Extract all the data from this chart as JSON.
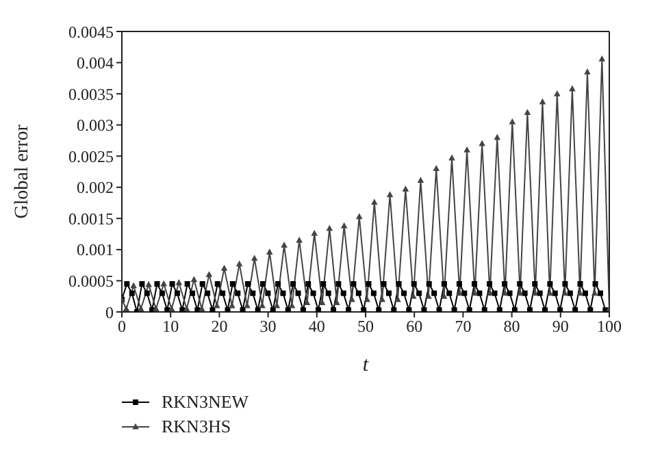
{
  "chart_data": {
    "type": "line",
    "xlabel": "t",
    "ylabel": "Global error",
    "xlim": [
      0,
      100
    ],
    "xticks": [
      0,
      10,
      20,
      30,
      40,
      50,
      60,
      70,
      80,
      90,
      100
    ],
    "ylim": [
      0,
      0.0045
    ],
    "yticks": [
      0,
      0.0005,
      0.001,
      0.0015,
      0.002,
      0.0025,
      0.003,
      0.0035,
      0.004,
      0.0045
    ],
    "legend": "bottom left",
    "series": [
      {
        "name": "RKN3NEW",
        "color": "#000000",
        "marker": "square",
        "x": [
          0,
          1.03,
          2.07,
          3.1,
          4.13,
          5.17,
          6.2,
          7.23,
          8.27,
          9.3,
          10.33,
          11.37,
          12.4,
          13.43,
          14.47,
          15.5,
          16.53,
          17.57,
          18.6,
          19.63,
          20.67,
          21.7,
          22.73,
          23.77,
          24.8,
          25.83,
          26.87,
          27.9,
          28.93,
          29.97,
          31,
          32.03,
          33.07,
          34.1,
          35.13,
          36.17,
          37.2,
          38.23,
          39.27,
          40.3,
          41.33,
          42.37,
          43.4,
          44.43,
          45.47,
          46.5,
          47.53,
          48.57,
          49.6,
          50.63,
          51.67,
          52.7,
          53.73,
          54.77,
          55.8,
          56.83,
          57.87,
          58.9,
          59.93,
          60.97,
          62,
          63.03,
          64.07,
          65.1,
          66.13,
          67.17,
          68.2,
          69.23,
          70.27,
          71.3,
          72.33,
          73.37,
          74.4,
          75.43,
          76.47,
          77.5,
          78.53,
          79.57,
          80.6,
          81.63,
          82.67,
          83.7,
          84.73,
          85.77,
          86.8,
          87.83,
          88.87,
          89.9,
          90.93,
          91.97,
          93,
          94.03,
          95.07,
          96.1,
          97.13,
          98.17,
          99.2
        ],
        "values": [
          0.0002,
          0.00045,
          0.0003,
          0,
          0.00045,
          0.0003,
          3e-05,
          0.00045,
          0.0003,
          3e-05,
          0.00045,
          0.0003,
          3e-05,
          0.00045,
          0.0003,
          3e-05,
          0.00045,
          0.0003,
          3e-05,
          0.00045,
          0.0003,
          3e-05,
          0.00045,
          0.0003,
          3e-05,
          0.00045,
          0.0003,
          3e-05,
          0.00045,
          0.0003,
          3e-05,
          0.00045,
          0.0003,
          3e-05,
          0.00045,
          0.0003,
          3e-05,
          0.00045,
          0.0003,
          3e-05,
          0.00045,
          0.0003,
          3e-05,
          0.00045,
          0.0003,
          3e-05,
          0.00045,
          0.0003,
          3e-05,
          0.00045,
          0.0003,
          3e-05,
          0.00045,
          0.0003,
          3e-05,
          0.00045,
          0.0003,
          3e-05,
          0.00045,
          0.0003,
          3e-05,
          0.00045,
          0.0003,
          3e-05,
          0.00045,
          0.0003,
          3e-05,
          0.00045,
          0.0003,
          3e-05,
          0.00045,
          0.0003,
          3e-05,
          0.00045,
          0.0003,
          3e-05,
          0.00045,
          0.0003,
          3e-05,
          0.00045,
          0.0003,
          3e-05,
          0.00045,
          0.0003,
          3e-05,
          0.00045,
          0.0003,
          3e-05,
          0.00045,
          0.0003,
          3e-05,
          0.00045,
          0.0003,
          3e-05,
          0.00045,
          0.0003,
          3e-05
        ]
      },
      {
        "name": "RKN3HS",
        "color": "#444444",
        "marker": "triangle",
        "x": [
          0,
          0.9,
          2.4,
          3.9,
          5.5,
          7,
          8.6,
          10.2,
          11.7,
          13.3,
          14.8,
          16.4,
          17.9,
          19.5,
          21,
          22.6,
          24.1,
          25.7,
          27.2,
          28.8,
          30.3,
          31.8,
          33.3,
          34.9,
          36.4,
          38,
          39.5,
          41.1,
          42.6,
          44.1,
          45.6,
          47.2,
          48.7,
          50.3,
          51.8,
          53.4,
          55,
          56.6,
          58.2,
          59.8,
          61.3,
          62.9,
          64.5,
          66.1,
          67.7,
          69.3,
          70.8,
          72.4,
          73.9,
          75.5,
          77,
          78.6,
          80.1,
          81.7,
          83.2,
          84.8,
          86.3,
          87.8,
          89.3,
          90.9,
          92.4,
          94,
          95.5,
          97,
          98.5,
          100
        ],
        "values": [
          0.0002,
          5e-05,
          0.00042,
          5e-05,
          0.00044,
          5e-05,
          0.00045,
          5e-05,
          0.00047,
          5e-05,
          0.00052,
          5e-05,
          0.0006,
          0.0001,
          0.0007,
          0.0001,
          0.00077,
          0.0001,
          0.00086,
          0.0001,
          0.00096,
          0.0001,
          0.00107,
          0.0001,
          0.00115,
          0.00015,
          0.00126,
          0.00015,
          0.00134,
          0.00015,
          0.00138,
          0.0002,
          0.00153,
          0.0002,
          0.00176,
          0.0002,
          0.00188,
          0.0002,
          0.00197,
          0.00025,
          0.00211,
          0.00025,
          0.0023,
          0.00025,
          0.00247,
          0.0003,
          0.0026,
          0.0003,
          0.0027,
          0.0003,
          0.0028,
          0.0003,
          0.00305,
          0.0003,
          0.0032,
          0.0003,
          0.00337,
          0.0003,
          0.0035,
          0.0003,
          0.00358,
          0.0003,
          0.00385,
          0.0003,
          0.00406,
          5e-05
        ]
      }
    ]
  }
}
